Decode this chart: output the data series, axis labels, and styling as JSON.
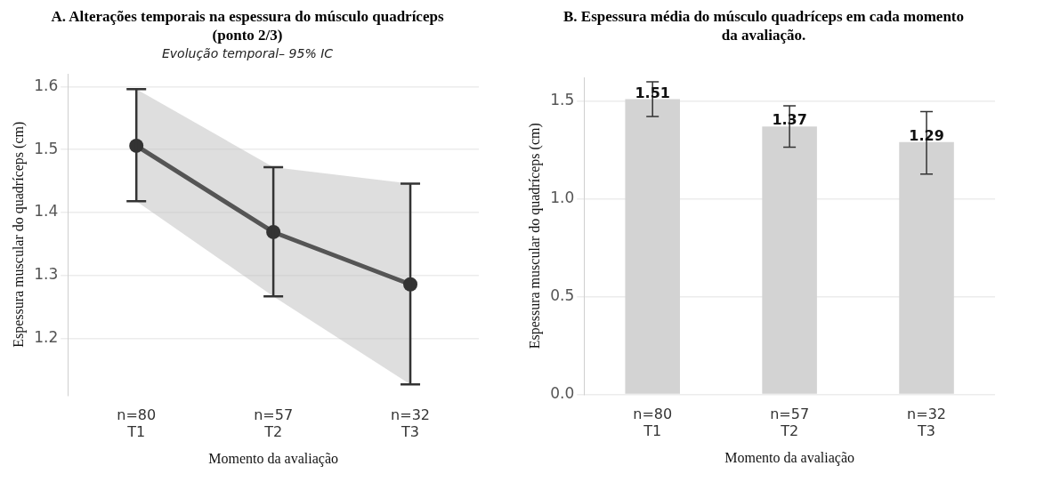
{
  "chart_data": [
    {
      "type": "line",
      "title": "A. Alterações temporais na espessura do músculo quadríceps (ponto 2/3)",
      "subtitle": "Evolução temporal– 95% IC",
      "xlabel": "Momento da avaliação",
      "ylabel": "Espessura muscular do quadríceps (cm)",
      "categories": [
        "n=80\nT1",
        "n=57\nT2",
        "n=32\nT3"
      ],
      "series": [
        {
          "color": "#555555",
          "values": [
            1.506,
            1.369,
            1.286
          ],
          "errors": [
            [
              1.418,
              1.596
            ],
            [
              1.267,
              1.472
            ],
            [
              1.127,
              1.446
            ]
          ],
          "lower": [
            1.418,
            1.267,
            1.127
          ],
          "upper": [
            1.596,
            1.472,
            1.446
          ]
        }
      ],
      "ylim": [
        1.11,
        1.62
      ],
      "yticks": [
        1.2,
        1.3,
        1.4,
        1.5,
        1.6
      ],
      "grid": "y",
      "marker": "circle"
    },
    {
      "type": "bar",
      "title": "B. Espessura média do músculo quadríceps em cada momento da avaliação.",
      "xlabel": "Momento da avaliação",
      "ylabel": "Espessura muscular do quadríceps (cm)",
      "categories": [
        "n=80\nT1",
        "n=57\nT2",
        "n=32\nT3"
      ],
      "series": [
        {
          "color": "#d3d3d3",
          "values": [
            1.51,
            1.37,
            1.29
          ],
          "errors": [
            [
              1.421,
              1.598
            ],
            [
              1.264,
              1.475
            ],
            [
              1.126,
              1.446
            ]
          ]
        }
      ],
      "ylim": [
        0,
        1.62
      ],
      "yticks": [
        {
          "value": 0,
          "label": "0.0"
        },
        {
          "value": 0.5,
          "label": "0.5"
        },
        {
          "value": 1,
          "label": "1.0"
        },
        {
          "value": 1.5,
          "label": "1.5"
        }
      ],
      "grid": "y",
      "data_labels": true
    }
  ]
}
